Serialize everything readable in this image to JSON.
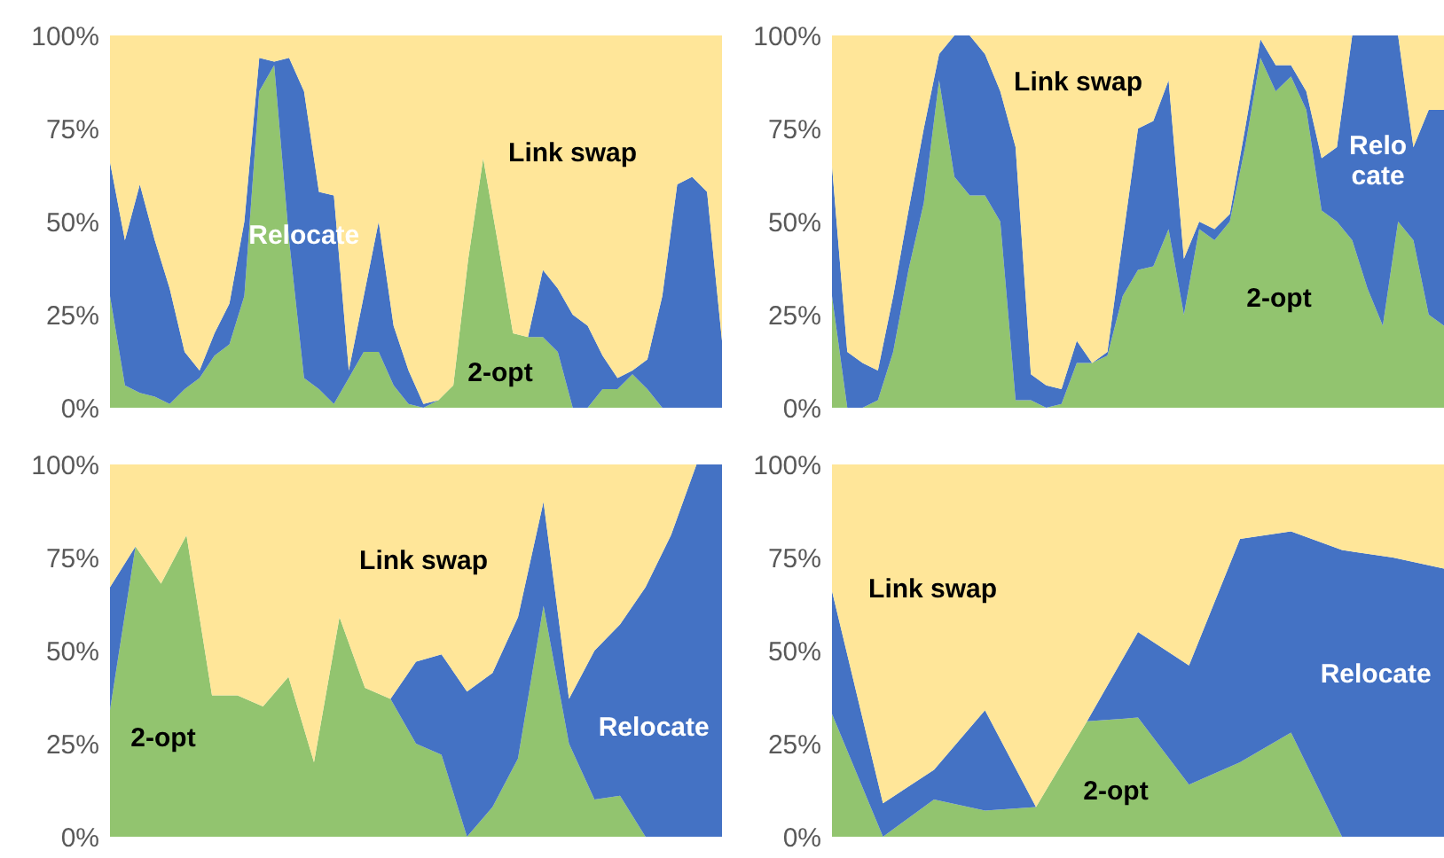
{
  "chart_data": [
    {
      "type": "area",
      "stacked": true,
      "grid": false,
      "ylim": [
        0,
        100
      ],
      "yticks": [
        {
          "value": 0,
          "label": "0%"
        },
        {
          "value": 25,
          "label": "25%"
        },
        {
          "value": 50,
          "label": "50%"
        },
        {
          "value": 75,
          "label": "75%"
        },
        {
          "value": 100,
          "label": "100%"
        }
      ],
      "categories": [
        null,
        null,
        null,
        null,
        null,
        null,
        null,
        null,
        null,
        null,
        null,
        null,
        null,
        null,
        null,
        null,
        null,
        null,
        null,
        null,
        null,
        null,
        null,
        null,
        null,
        null,
        null,
        null,
        null,
        null,
        null,
        null,
        null,
        null,
        null,
        null,
        null,
        null,
        null,
        null,
        null,
        null
      ],
      "series": [
        {
          "name": "2-opt",
          "color": "#92c46f",
          "values": [
            30,
            6,
            4,
            3,
            1,
            5,
            8,
            14,
            17,
            30,
            85,
            92,
            45,
            8,
            5,
            1,
            8,
            15,
            15,
            6,
            1,
            0,
            2,
            6,
            40,
            67,
            44,
            20,
            19,
            19,
            15,
            0,
            0,
            5,
            5,
            9,
            5,
            0,
            0,
            0,
            0,
            0
          ]
        },
        {
          "name": "Relocate",
          "color": "#4472c4",
          "values": [
            36,
            39,
            56,
            42,
            31,
            10,
            2,
            6,
            11,
            20,
            9,
            1,
            49,
            77,
            53,
            56,
            2,
            15,
            35,
            16,
            9,
            1,
            0,
            0,
            0,
            0,
            0,
            0,
            0,
            18,
            17,
            25,
            22,
            9,
            3,
            1,
            8,
            30,
            60,
            62,
            58,
            18
          ]
        },
        {
          "name": "Link swap",
          "color": "#ffe699",
          "values": [
            34,
            55,
            40,
            55,
            68,
            85,
            90,
            80,
            72,
            50,
            6,
            7,
            6,
            15,
            42,
            43,
            90,
            70,
            50,
            78,
            90,
            99,
            98,
            94,
            60,
            33,
            56,
            80,
            81,
            63,
            68,
            75,
            78,
            86,
            92,
            90,
            87,
            70,
            40,
            38,
            42,
            82
          ]
        }
      ]
    },
    {
      "type": "area",
      "stacked": true,
      "grid": false,
      "ylim": [
        0,
        100
      ],
      "yticks": [
        {
          "value": 0,
          "label": "0%"
        },
        {
          "value": 25,
          "label": "25%"
        },
        {
          "value": 50,
          "label": "50%"
        },
        {
          "value": 75,
          "label": "75%"
        },
        {
          "value": 100,
          "label": "100%"
        }
      ],
      "categories": [
        null,
        null,
        null,
        null,
        null,
        null,
        null,
        null,
        null,
        null,
        null,
        null,
        null,
        null,
        null,
        null,
        null,
        null,
        null,
        null,
        null,
        null,
        null,
        null,
        null,
        null,
        null,
        null,
        null,
        null,
        null,
        null,
        null,
        null,
        null,
        null,
        null,
        null,
        null,
        null,
        null
      ],
      "series": [
        {
          "name": "2-opt",
          "color": "#92c46f",
          "values": [
            30,
            0,
            0,
            2,
            15,
            37,
            55,
            88,
            62,
            57,
            57,
            50,
            2,
            2,
            0,
            1,
            12,
            12,
            14,
            30,
            37,
            38,
            48,
            25,
            48,
            45,
            50,
            70,
            94,
            85,
            89,
            80,
            53,
            50,
            45,
            32,
            22,
            50,
            45,
            25,
            22
          ]
        },
        {
          "name": "Relocate",
          "color": "#4472c4",
          "values": [
            35,
            15,
            12,
            8,
            15,
            16,
            20,
            7,
            38,
            43,
            38,
            35,
            68,
            7,
            6,
            4,
            6,
            0,
            1,
            15,
            38,
            39,
            40,
            15,
            2,
            3,
            2,
            5,
            5,
            7,
            3,
            5,
            14,
            20,
            55,
            68,
            78,
            50,
            25,
            55,
            58
          ]
        },
        {
          "name": "Link swap",
          "color": "#ffe699",
          "values": [
            35,
            85,
            88,
            90,
            70,
            47,
            25,
            5,
            0,
            0,
            5,
            15,
            30,
            91,
            94,
            95,
            82,
            88,
            85,
            55,
            25,
            23,
            12,
            60,
            50,
            52,
            48,
            25,
            1,
            8,
            8,
            15,
            33,
            30,
            0,
            0,
            0,
            0,
            30,
            20,
            20
          ]
        }
      ]
    },
    {
      "type": "area",
      "stacked": true,
      "grid": false,
      "ylim": [
        0,
        100
      ],
      "yticks": [
        {
          "value": 0,
          "label": "0%"
        },
        {
          "value": 25,
          "label": "25%"
        },
        {
          "value": 50,
          "label": "50%"
        },
        {
          "value": 75,
          "label": "75%"
        },
        {
          "value": 100,
          "label": "100%"
        }
      ],
      "categories": [
        null,
        null,
        null,
        null,
        null,
        null,
        null,
        null,
        null,
        null,
        null,
        null,
        null,
        null,
        null,
        null,
        null,
        null,
        null,
        null,
        null,
        null,
        null,
        null,
        null
      ],
      "series": [
        {
          "name": "2-opt",
          "color": "#92c46f",
          "values": [
            34,
            78,
            68,
            81,
            38,
            38,
            35,
            43,
            20,
            59,
            40,
            37,
            25,
            22,
            0,
            8,
            21,
            62,
            25,
            10,
            11,
            0,
            0,
            0,
            0
          ]
        },
        {
          "name": "Relocate",
          "color": "#4472c4",
          "values": [
            33,
            0,
            0,
            0,
            0,
            0,
            0,
            0,
            0,
            0,
            0,
            0,
            22,
            27,
            39,
            36,
            38,
            28,
            12,
            40,
            46,
            67,
            81,
            100,
            100
          ]
        },
        {
          "name": "Link swap",
          "color": "#ffe699",
          "values": [
            33,
            22,
            32,
            19,
            62,
            62,
            65,
            57,
            80,
            41,
            60,
            63,
            53,
            51,
            61,
            56,
            41,
            10,
            63,
            50,
            43,
            33,
            19,
            0,
            0
          ]
        }
      ]
    },
    {
      "type": "area",
      "stacked": true,
      "grid": false,
      "ylim": [
        0,
        100
      ],
      "yticks": [
        {
          "value": 0,
          "label": "0%"
        },
        {
          "value": 25,
          "label": "25%"
        },
        {
          "value": 50,
          "label": "50%"
        },
        {
          "value": 75,
          "label": "75%"
        },
        {
          "value": 100,
          "label": "100%"
        }
      ],
      "categories": [
        null,
        null,
        null,
        null,
        null,
        null,
        null,
        null,
        null,
        null,
        null,
        null,
        null
      ],
      "series": [
        {
          "name": "2-opt",
          "color": "#92c46f",
          "values": [
            33,
            0,
            10,
            7,
            8,
            31,
            32,
            14,
            20,
            28,
            0,
            0,
            0
          ]
        },
        {
          "name": "Relocate",
          "color": "#4472c4",
          "values": [
            33,
            9,
            8,
            27,
            0,
            0,
            23,
            32,
            60,
            54,
            77,
            75,
            72
          ]
        },
        {
          "name": "Link swap",
          "color": "#ffe699",
          "values": [
            34,
            91,
            82,
            66,
            92,
            69,
            45,
            54,
            20,
            18,
            23,
            25,
            28
          ]
        }
      ]
    }
  ]
}
